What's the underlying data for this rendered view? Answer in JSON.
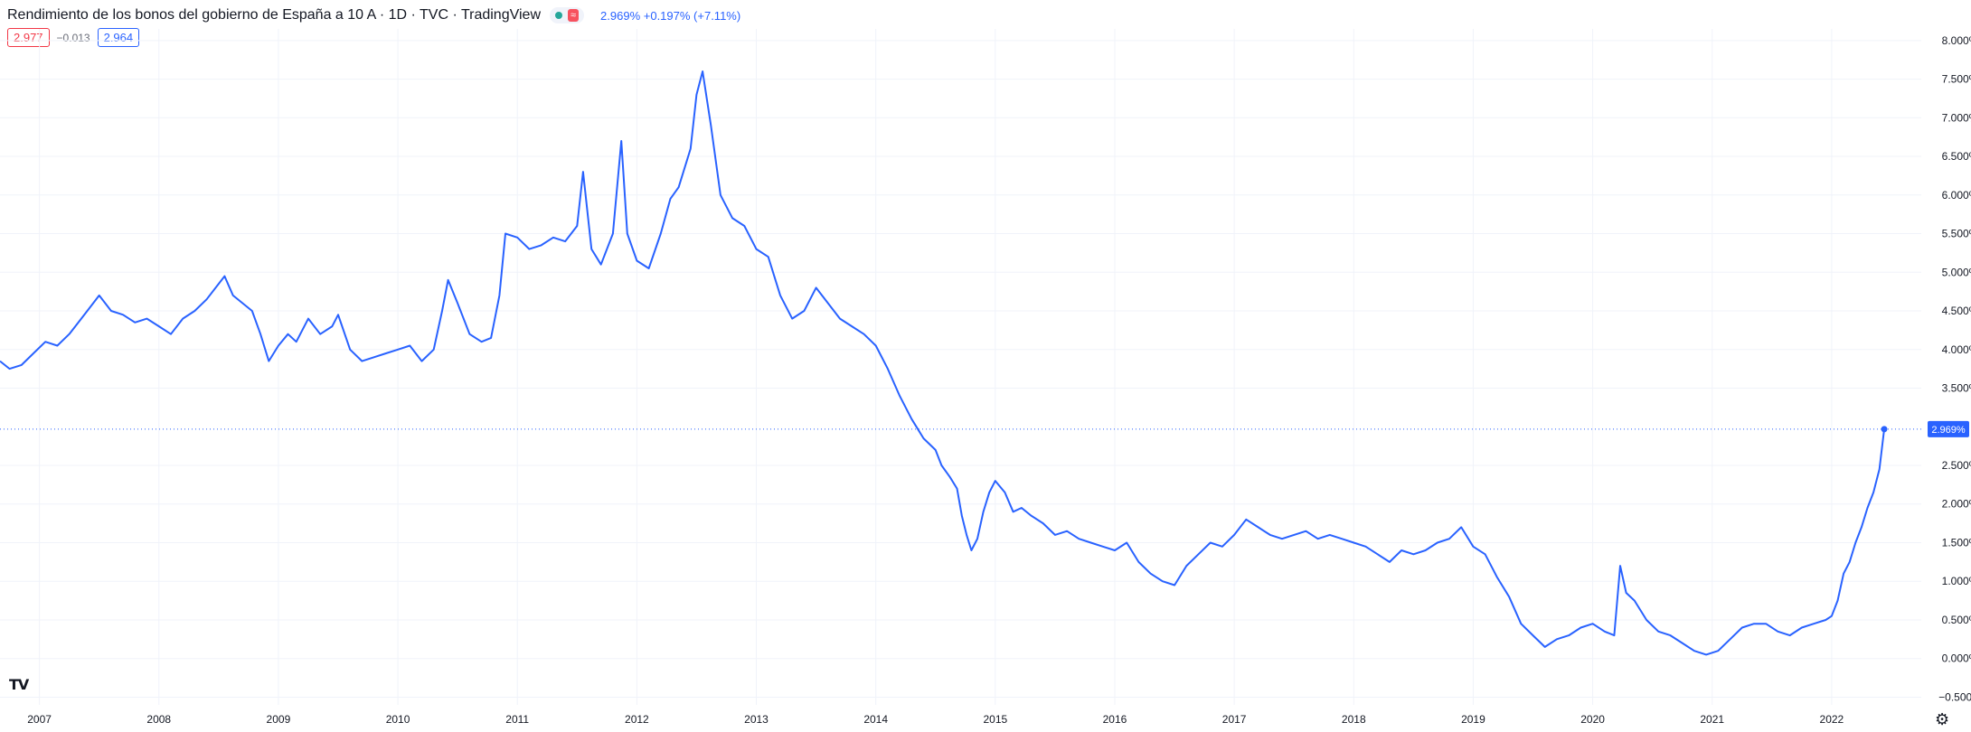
{
  "header": {
    "title": "Rendimiento de los bonos del gobierno de España a 10 A · 1D · TVC · TradingView",
    "approx_badge": "≈",
    "price_info": "2.969%  +0.197% (+7.11%)"
  },
  "quotes": {
    "bid": "2.977",
    "spread": "−0.013",
    "ask": "2.964"
  },
  "icons": {
    "logo": "tradingview-logo",
    "settings": "gear-icon"
  },
  "colors": {
    "line": "#2962ff",
    "last_price": "#2962ff",
    "bid_box": "#f23645",
    "grid": "#f0f3fa"
  },
  "chart_data": {
    "type": "line",
    "title": "Rendimiento de los bonos del gobierno de España a 10 A · 1D · TVC · TradingView",
    "xlabel": "",
    "ylabel": "",
    "ylim": [
      -0.6,
      8.15
    ],
    "xlim": [
      2006.67,
      2022.75
    ],
    "y_ticks": [
      "8.000%",
      "7.500%",
      "7.000%",
      "6.500%",
      "6.000%",
      "5.500%",
      "5.000%",
      "4.500%",
      "4.000%",
      "3.500%",
      "2.500%",
      "2.000%",
      "1.500%",
      "1.000%",
      "0.500%",
      "0.000%",
      "−0.500%"
    ],
    "x_ticks": [
      "2007",
      "2008",
      "2009",
      "2010",
      "2011",
      "2012",
      "2013",
      "2014",
      "2015",
      "2016",
      "2017",
      "2018",
      "2019",
      "2020",
      "2021",
      "2022"
    ],
    "last_value_label": "2.969%",
    "grid": true,
    "series": [
      {
        "values": [
          [
            2006.67,
            3.85
          ],
          [
            2006.75,
            3.75
          ],
          [
            2006.85,
            3.8
          ],
          [
            2006.95,
            3.95
          ],
          [
            2007.05,
            4.1
          ],
          [
            2007.15,
            4.05
          ],
          [
            2007.25,
            4.2
          ],
          [
            2007.35,
            4.4
          ],
          [
            2007.45,
            4.6
          ],
          [
            2007.5,
            4.7
          ],
          [
            2007.6,
            4.5
          ],
          [
            2007.7,
            4.45
          ],
          [
            2007.8,
            4.35
          ],
          [
            2007.9,
            4.4
          ],
          [
            2008.0,
            4.3
          ],
          [
            2008.1,
            4.2
          ],
          [
            2008.2,
            4.4
          ],
          [
            2008.3,
            4.5
          ],
          [
            2008.4,
            4.65
          ],
          [
            2008.5,
            4.85
          ],
          [
            2008.55,
            4.95
          ],
          [
            2008.62,
            4.7
          ],
          [
            2008.7,
            4.6
          ],
          [
            2008.78,
            4.5
          ],
          [
            2008.85,
            4.2
          ],
          [
            2008.92,
            3.85
          ],
          [
            2009.0,
            4.05
          ],
          [
            2009.08,
            4.2
          ],
          [
            2009.15,
            4.1
          ],
          [
            2009.25,
            4.4
          ],
          [
            2009.35,
            4.2
          ],
          [
            2009.45,
            4.3
          ],
          [
            2009.5,
            4.45
          ],
          [
            2009.6,
            4.0
          ],
          [
            2009.7,
            3.85
          ],
          [
            2009.8,
            3.9
          ],
          [
            2009.9,
            3.95
          ],
          [
            2010.0,
            4.0
          ],
          [
            2010.1,
            4.05
          ],
          [
            2010.2,
            3.85
          ],
          [
            2010.3,
            4.0
          ],
          [
            2010.37,
            4.5
          ],
          [
            2010.42,
            4.9
          ],
          [
            2010.5,
            4.6
          ],
          [
            2010.6,
            4.2
          ],
          [
            2010.7,
            4.1
          ],
          [
            2010.78,
            4.15
          ],
          [
            2010.85,
            4.7
          ],
          [
            2010.9,
            5.5
          ],
          [
            2011.0,
            5.45
          ],
          [
            2011.1,
            5.3
          ],
          [
            2011.2,
            5.35
          ],
          [
            2011.3,
            5.45
          ],
          [
            2011.4,
            5.4
          ],
          [
            2011.5,
            5.6
          ],
          [
            2011.55,
            6.3
          ],
          [
            2011.62,
            5.3
          ],
          [
            2011.7,
            5.1
          ],
          [
            2011.8,
            5.5
          ],
          [
            2011.87,
            6.7
          ],
          [
            2011.92,
            5.5
          ],
          [
            2012.0,
            5.15
          ],
          [
            2012.1,
            5.05
          ],
          [
            2012.2,
            5.5
          ],
          [
            2012.28,
            5.95
          ],
          [
            2012.35,
            6.1
          ],
          [
            2012.45,
            6.6
          ],
          [
            2012.5,
            7.3
          ],
          [
            2012.55,
            7.6
          ],
          [
            2012.62,
            6.9
          ],
          [
            2012.7,
            6.0
          ],
          [
            2012.8,
            5.7
          ],
          [
            2012.9,
            5.6
          ],
          [
            2013.0,
            5.3
          ],
          [
            2013.1,
            5.2
          ],
          [
            2013.2,
            4.7
          ],
          [
            2013.3,
            4.4
          ],
          [
            2013.4,
            4.5
          ],
          [
            2013.5,
            4.8
          ],
          [
            2013.6,
            4.6
          ],
          [
            2013.7,
            4.4
          ],
          [
            2013.8,
            4.3
          ],
          [
            2013.9,
            4.2
          ],
          [
            2014.0,
            4.05
          ],
          [
            2014.1,
            3.75
          ],
          [
            2014.2,
            3.4
          ],
          [
            2014.3,
            3.1
          ],
          [
            2014.4,
            2.85
          ],
          [
            2014.5,
            2.7
          ],
          [
            2014.55,
            2.5
          ],
          [
            2014.62,
            2.35
          ],
          [
            2014.68,
            2.2
          ],
          [
            2014.72,
            1.85
          ],
          [
            2014.76,
            1.6
          ],
          [
            2014.8,
            1.4
          ],
          [
            2014.85,
            1.55
          ],
          [
            2014.9,
            1.9
          ],
          [
            2014.95,
            2.15
          ],
          [
            2015.0,
            2.3
          ],
          [
            2015.08,
            2.15
          ],
          [
            2015.15,
            1.9
          ],
          [
            2015.22,
            1.95
          ],
          [
            2015.3,
            1.85
          ],
          [
            2015.4,
            1.75
          ],
          [
            2015.5,
            1.6
          ],
          [
            2015.6,
            1.65
          ],
          [
            2015.7,
            1.55
          ],
          [
            2015.8,
            1.5
          ],
          [
            2015.9,
            1.45
          ],
          [
            2016.0,
            1.4
          ],
          [
            2016.1,
            1.5
          ],
          [
            2016.2,
            1.25
          ],
          [
            2016.3,
            1.1
          ],
          [
            2016.4,
            1.0
          ],
          [
            2016.5,
            0.95
          ],
          [
            2016.6,
            1.2
          ],
          [
            2016.7,
            1.35
          ],
          [
            2016.8,
            1.5
          ],
          [
            2016.9,
            1.45
          ],
          [
            2017.0,
            1.6
          ],
          [
            2017.1,
            1.8
          ],
          [
            2017.2,
            1.7
          ],
          [
            2017.3,
            1.6
          ],
          [
            2017.4,
            1.55
          ],
          [
            2017.5,
            1.6
          ],
          [
            2017.6,
            1.65
          ],
          [
            2017.7,
            1.55
          ],
          [
            2017.8,
            1.6
          ],
          [
            2017.9,
            1.55
          ],
          [
            2018.0,
            1.5
          ],
          [
            2018.1,
            1.45
          ],
          [
            2018.2,
            1.35
          ],
          [
            2018.3,
            1.25
          ],
          [
            2018.4,
            1.4
          ],
          [
            2018.5,
            1.35
          ],
          [
            2018.6,
            1.4
          ],
          [
            2018.7,
            1.5
          ],
          [
            2018.8,
            1.55
          ],
          [
            2018.9,
            1.7
          ],
          [
            2019.0,
            1.45
          ],
          [
            2019.1,
            1.35
          ],
          [
            2019.2,
            1.05
          ],
          [
            2019.3,
            0.8
          ],
          [
            2019.4,
            0.45
          ],
          [
            2019.5,
            0.3
          ],
          [
            2019.6,
            0.15
          ],
          [
            2019.7,
            0.25
          ],
          [
            2019.8,
            0.3
          ],
          [
            2019.9,
            0.4
          ],
          [
            2020.0,
            0.45
          ],
          [
            2020.1,
            0.35
          ],
          [
            2020.18,
            0.3
          ],
          [
            2020.23,
            1.2
          ],
          [
            2020.28,
            0.85
          ],
          [
            2020.35,
            0.75
          ],
          [
            2020.45,
            0.5
          ],
          [
            2020.55,
            0.35
          ],
          [
            2020.65,
            0.3
          ],
          [
            2020.75,
            0.2
          ],
          [
            2020.85,
            0.1
          ],
          [
            2020.95,
            0.05
          ],
          [
            2021.05,
            0.1
          ],
          [
            2021.15,
            0.25
          ],
          [
            2021.25,
            0.4
          ],
          [
            2021.35,
            0.45
          ],
          [
            2021.45,
            0.45
          ],
          [
            2021.55,
            0.35
          ],
          [
            2021.65,
            0.3
          ],
          [
            2021.75,
            0.4
          ],
          [
            2021.85,
            0.45
          ],
          [
            2021.95,
            0.5
          ],
          [
            2022.0,
            0.55
          ],
          [
            2022.05,
            0.75
          ],
          [
            2022.1,
            1.1
          ],
          [
            2022.15,
            1.25
          ],
          [
            2022.2,
            1.5
          ],
          [
            2022.25,
            1.7
          ],
          [
            2022.3,
            1.95
          ],
          [
            2022.35,
            2.15
          ],
          [
            2022.4,
            2.45
          ],
          [
            2022.44,
            2.969
          ]
        ]
      }
    ]
  }
}
